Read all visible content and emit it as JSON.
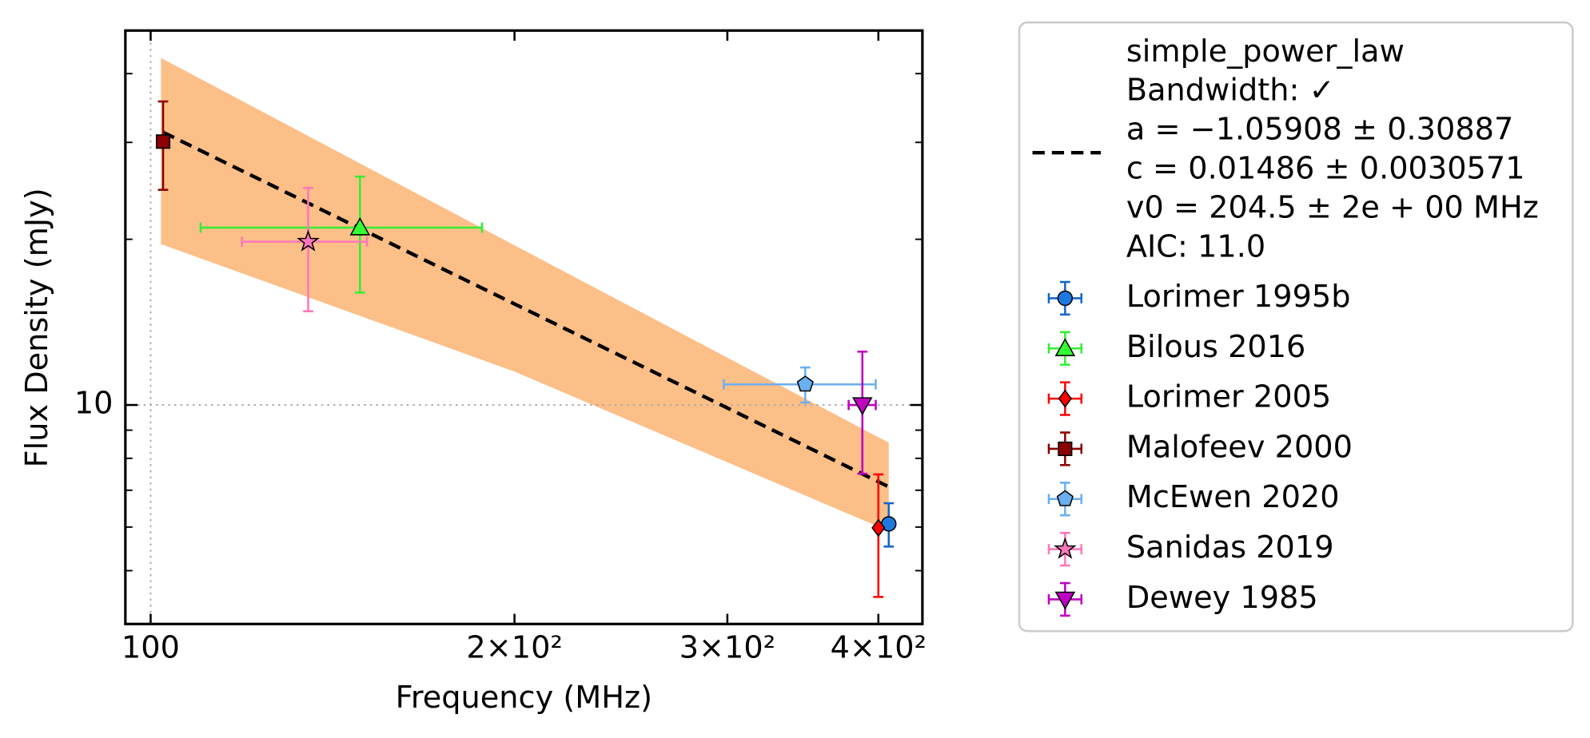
{
  "chart_data": {
    "type": "errorbar",
    "xlabel": "Frequency (MHz)",
    "ylabel": "Flux Density (mJy)",
    "xscale": "log",
    "yscale": "log",
    "xlim": [
      95.3,
      435
    ],
    "ylim": [
      4.0,
      47.9
    ],
    "xticks": [
      100,
      {
        "value": 200,
        "label": "2×10²"
      },
      {
        "value": 300,
        "label": "3×10²"
      },
      {
        "value": 400,
        "label": "4×10²"
      }
    ],
    "yticks": [
      10
    ],
    "yminor_ticks": [
      5,
      6,
      7,
      8,
      9,
      20,
      30,
      40
    ],
    "grid": true,
    "legend": "outside right",
    "fit": {
      "label_lines": [
        "simple_power_law",
        "Bandwidth: ✓",
        "a = −1.05908 ± 0.30887",
        "c = 0.01486 ± 0.0030571",
        "v0 = 204.5 ± 2e + 00 MHz",
        "AIC: 11.0"
      ],
      "color": "#000000",
      "band_color": "#fdbf88",
      "x": [
        102.4,
        408
      ],
      "values": [
        31.3,
        7.1
      ],
      "band_x": [
        102,
        200,
        408
      ],
      "band_upper": [
        42.7,
        19.5,
        8.54
      ],
      "band_lower": [
        19.6,
        11.5,
        5.9
      ]
    },
    "series": [
      {
        "name": "Lorimer 1995b",
        "marker": "circle",
        "color": "#1f78e0",
        "ecolor": "#1565c8",
        "x": [
          408
        ],
        "values": [
          6.08
        ],
        "xerr": [
          4
        ],
        "yerr": [
          0.55
        ]
      },
      {
        "name": "Bilous 2016",
        "marker": "triangle-up",
        "color": "#33ff33",
        "ecolor": "#33ee33",
        "x": [
          149
        ],
        "values": [
          21
        ],
        "xerr": [
          39
        ],
        "yerr": [
          5
        ]
      },
      {
        "name": "Lorimer 2005",
        "marker": "diamond",
        "color": "#ff0000",
        "ecolor": "#ff0000",
        "x": [
          400
        ],
        "values": [
          5.98
        ],
        "xerr": [
          0
        ],
        "yerr": [
          1.5
        ]
      },
      {
        "name": "Malofeev 2000",
        "marker": "square",
        "color": "#8b0000",
        "ecolor": "#8b0000",
        "x": [
          102.4
        ],
        "values": [
          30.1
        ],
        "xerr": [
          0
        ],
        "yerr": [
          5.5
        ]
      },
      {
        "name": "McEwen 2020",
        "marker": "pentagon",
        "color": "#6aaff0",
        "ecolor": "#6aaff0",
        "x": [
          348
        ],
        "values": [
          10.9
        ],
        "xerr": [
          50
        ],
        "yerr": [
          0.8
        ]
      },
      {
        "name": "Sanidas 2019",
        "marker": "star",
        "color": "#ff77bb",
        "ecolor": "#ff77bb",
        "x": [
          135
        ],
        "values": [
          19.8
        ],
        "xerr": [
          16
        ],
        "yerr": [
          5
        ]
      },
      {
        "name": "Dewey 1985",
        "marker": "triangle-down",
        "color": "#c000c0",
        "ecolor": "#c000c0",
        "x": [
          388
        ],
        "values": [
          10
        ],
        "xerr": [
          10
        ],
        "yerr": [
          2.5
        ]
      }
    ]
  }
}
